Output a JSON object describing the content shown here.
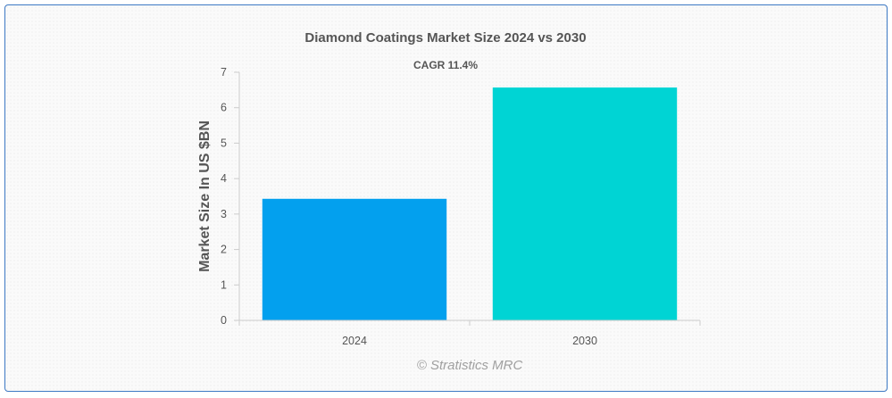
{
  "chart_data": {
    "type": "bar",
    "title": "Diamond Coatings Market Size 2024 vs 2030",
    "subtitle": "CAGR 11.4%",
    "xlabel": "",
    "ylabel": "Market Size In US $BN",
    "categories": [
      "2024",
      "2030"
    ],
    "values": [
      3.43,
      6.57
    ],
    "ylim": [
      0,
      7
    ],
    "yticks": [
      0,
      1,
      2,
      3,
      4,
      5,
      6,
      7
    ],
    "colors": [
      "#03a0ee",
      "#00d4d4"
    ],
    "grid": false,
    "legend": "none",
    "credit": "© Stratistics MRC"
  }
}
